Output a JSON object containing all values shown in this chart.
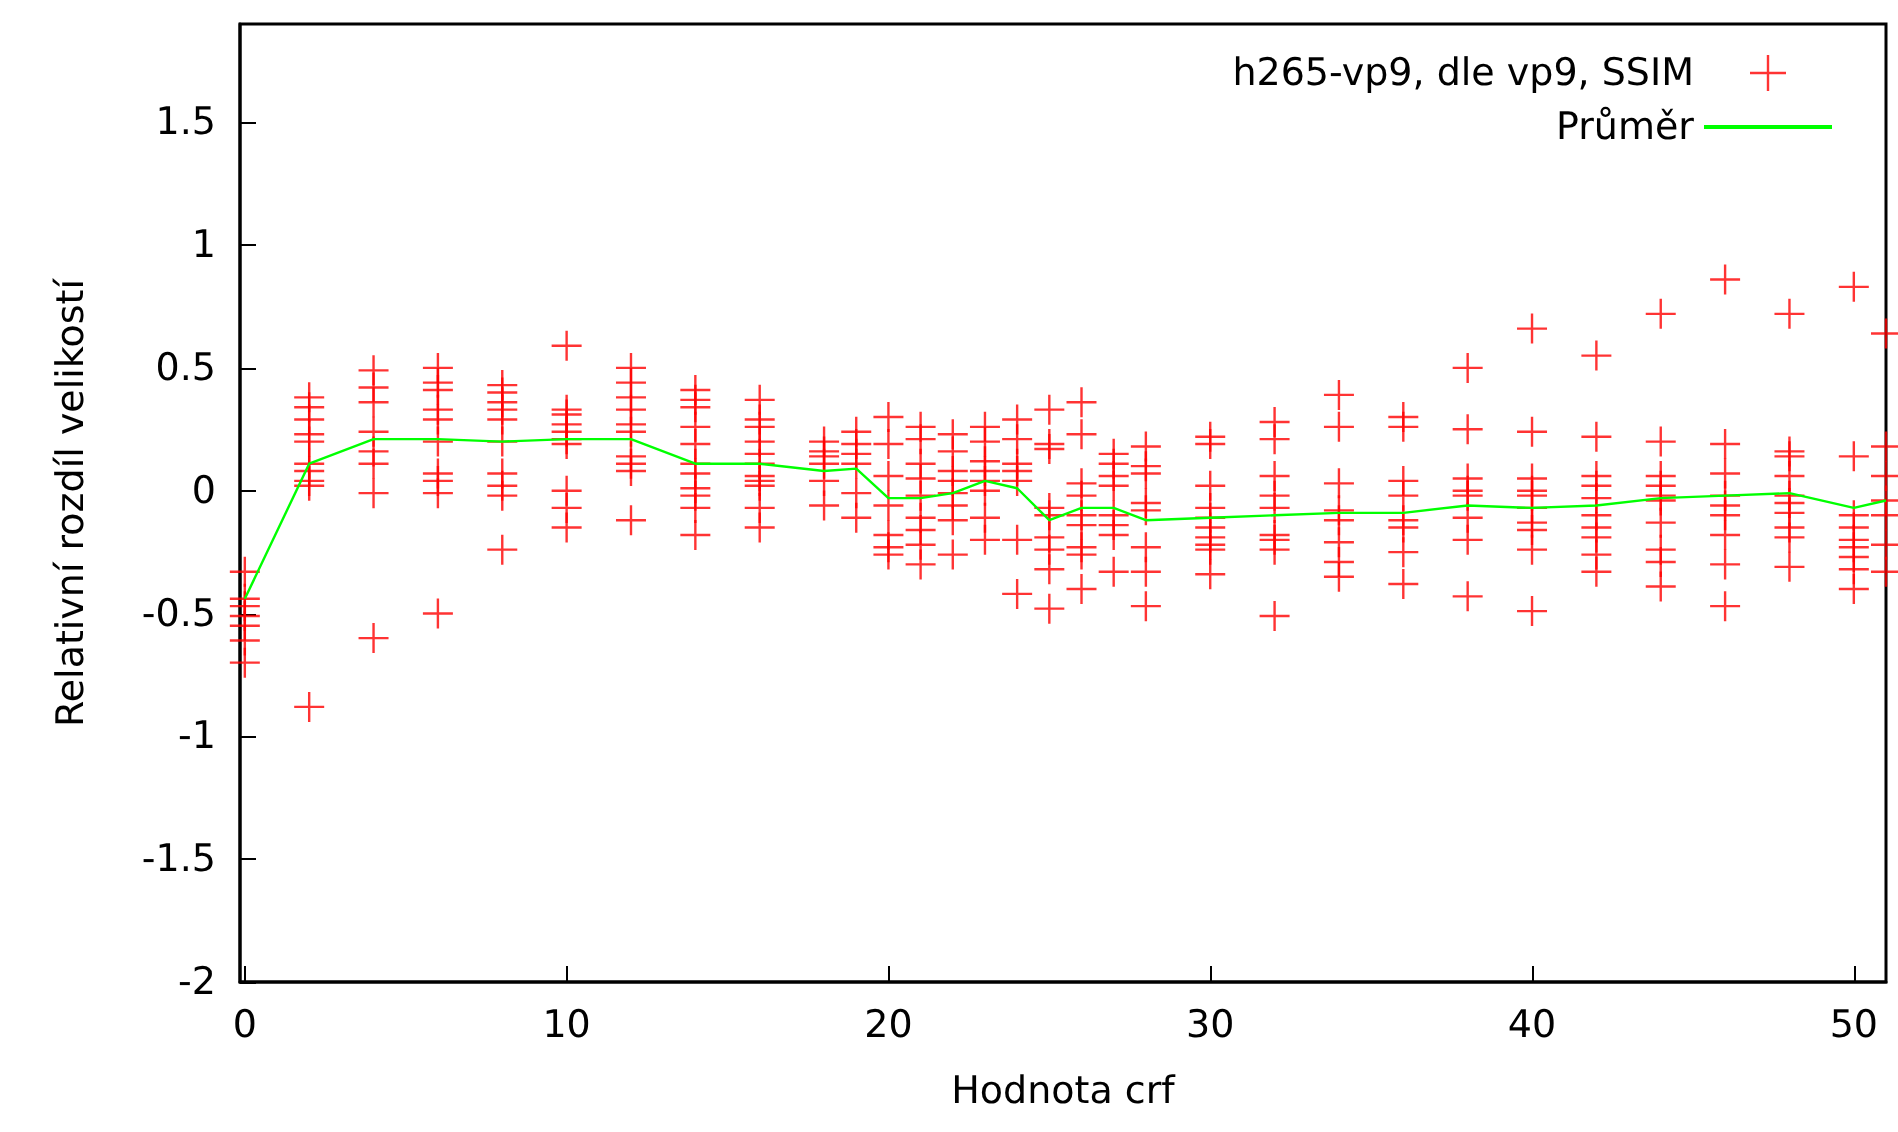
{
  "chart_data": {
    "type": "scatter",
    "xlabel": "Hodnota crf",
    "ylabel": "Relativní rozdíl velikostí",
    "xlim": [
      -0.15,
      51
    ],
    "ylim": [
      -2,
      1.9
    ],
    "xticks": [
      0,
      10,
      20,
      30,
      40,
      50
    ],
    "yticks": [
      -2,
      -1.5,
      -1,
      -0.5,
      0,
      0.5,
      1,
      1.5
    ],
    "grid": false,
    "legend": "top right",
    "series": [
      {
        "name": "h265-vp9, dle vp9, SSIM",
        "marker": "cross",
        "color": "#ff0000",
        "x": [
          0,
          0,
          0,
          0,
          0,
          0,
          0,
          2,
          2,
          2,
          2,
          2,
          2,
          2,
          2,
          2,
          2,
          4,
          4,
          4,
          4,
          4,
          4,
          4,
          4,
          6,
          6,
          6,
          6,
          6,
          6,
          6,
          6,
          6,
          6,
          8,
          8,
          8,
          8,
          8,
          8,
          8,
          8,
          8,
          8,
          10,
          10,
          10,
          10,
          10,
          10,
          10,
          10,
          10,
          10,
          12,
          12,
          12,
          12,
          12,
          12,
          12,
          12,
          12,
          12,
          14,
          14,
          14,
          14,
          14,
          14,
          14,
          14,
          14,
          14,
          14,
          16,
          16,
          16,
          16,
          16,
          16,
          16,
          16,
          16,
          16,
          16,
          18,
          18,
          18,
          18,
          18,
          18,
          19,
          19,
          19,
          19,
          19,
          19,
          20,
          20,
          20,
          20,
          20,
          20,
          20,
          21,
          21,
          21,
          21,
          21,
          21,
          21,
          21,
          21,
          22,
          22,
          22,
          22,
          22,
          22,
          22,
          22,
          23,
          23,
          23,
          23,
          23,
          23,
          23,
          23,
          24,
          24,
          24,
          24,
          24,
          24,
          24,
          25,
          25,
          25,
          25,
          25,
          25,
          25,
          25,
          25,
          26,
          26,
          26,
          26,
          26,
          26,
          26,
          26,
          26,
          27,
          27,
          27,
          27,
          27,
          27,
          27,
          27,
          28,
          28,
          28,
          28,
          28,
          28,
          28,
          28,
          30,
          30,
          30,
          30,
          30,
          30,
          30,
          30,
          30,
          30,
          32,
          32,
          32,
          32,
          32,
          32,
          32,
          32,
          32,
          34,
          34,
          34,
          34,
          34,
          34,
          34,
          34,
          36,
          36,
          36,
          36,
          36,
          36,
          36,
          36,
          38,
          38,
          38,
          38,
          38,
          38,
          38,
          38,
          40,
          40,
          40,
          40,
          40,
          40,
          40,
          40,
          40,
          40,
          42,
          42,
          42,
          42,
          42,
          42,
          42,
          42,
          42,
          42,
          44,
          44,
          44,
          44,
          44,
          44,
          44,
          44,
          44,
          44,
          46,
          46,
          46,
          46,
          46,
          46,
          46,
          46,
          46,
          48,
          48,
          48,
          48,
          48,
          48,
          48,
          48,
          48,
          48,
          50,
          50,
          50,
          50,
          50,
          50,
          50,
          50,
          50,
          51,
          51,
          51,
          51,
          51,
          51,
          51
        ],
        "values": [
          -0.33,
          -0.44,
          -0.47,
          -0.51,
          -0.55,
          -0.61,
          -0.7,
          0.38,
          0.34,
          0.29,
          0.23,
          0.2,
          0.11,
          0.08,
          0.04,
          0.02,
          -0.88,
          0.49,
          0.42,
          0.36,
          0.24,
          0.16,
          0.11,
          -0.01,
          -0.6,
          0.5,
          0.44,
          0.41,
          0.33,
          0.29,
          0.2,
          0.07,
          0.04,
          -0.01,
          -0.5,
          0.43,
          0.4,
          0.36,
          0.33,
          0.29,
          0.2,
          0.07,
          0.02,
          -0.02,
          -0.24,
          0.59,
          0.33,
          0.31,
          0.27,
          0.24,
          0.21,
          0.19,
          0,
          -0.07,
          -0.15,
          0.5,
          0.44,
          0.38,
          0.33,
          0.27,
          0.24,
          0.14,
          0.11,
          0.08,
          -0.12,
          0.41,
          0.37,
          0.34,
          0.26,
          0.19,
          0.11,
          0.07,
          0.01,
          -0.02,
          -0.07,
          -0.18,
          0.37,
          0.29,
          0.26,
          0.2,
          0.15,
          0.11,
          0.06,
          0.04,
          0.02,
          -0.07,
          -0.15,
          0.2,
          0.16,
          0.14,
          0.11,
          0.04,
          -0.06,
          0.24,
          0.19,
          0.15,
          0.11,
          -0.01,
          -0.11,
          0.3,
          0.19,
          0.06,
          -0.06,
          -0.18,
          -0.23,
          -0.26,
          0.26,
          0.21,
          0.11,
          0.05,
          -0.02,
          -0.11,
          -0.16,
          -0.22,
          -0.3,
          0.23,
          0.16,
          0.08,
          0.04,
          -0.01,
          -0.06,
          -0.12,
          -0.26,
          0.26,
          0.2,
          0.12,
          0.08,
          0.04,
          0,
          -0.11,
          -0.2,
          0.29,
          0.21,
          0.11,
          0.08,
          0.04,
          -0.2,
          -0.42,
          0.33,
          0.19,
          0.17,
          -0.07,
          -0.1,
          -0.19,
          -0.24,
          -0.32,
          -0.48,
          0.36,
          0.23,
          0.03,
          -0.02,
          -0.1,
          -0.14,
          -0.23,
          -0.26,
          -0.4,
          0.15,
          0.11,
          0.06,
          0.02,
          -0.1,
          -0.14,
          -0.18,
          -0.33,
          0.18,
          0.1,
          0.07,
          -0.05,
          -0.08,
          -0.23,
          -0.33,
          -0.47,
          0.22,
          0.19,
          0.02,
          -0.07,
          -0.11,
          -0.15,
          -0.19,
          -0.22,
          -0.24,
          -0.34,
          0.28,
          0.21,
          0.06,
          -0.02,
          -0.07,
          -0.18,
          -0.2,
          -0.24,
          -0.51,
          0.39,
          0.26,
          0.03,
          -0.08,
          -0.12,
          -0.21,
          -0.29,
          -0.35,
          0.3,
          0.26,
          0.04,
          -0.02,
          -0.12,
          -0.15,
          -0.25,
          -0.38,
          0.5,
          0.25,
          0.05,
          0,
          -0.02,
          -0.11,
          -0.2,
          -0.43,
          0.66,
          0.24,
          0.05,
          0,
          -0.02,
          -0.07,
          -0.13,
          -0.16,
          -0.24,
          -0.49,
          0.55,
          0.22,
          0.06,
          0.02,
          -0.03,
          -0.1,
          -0.15,
          -0.19,
          -0.26,
          -0.33,
          0.72,
          0.2,
          0.06,
          0.02,
          -0.02,
          -0.04,
          -0.13,
          -0.24,
          -0.29,
          -0.39,
          0.86,
          0.19,
          0.07,
          -0.02,
          -0.06,
          -0.1,
          -0.18,
          -0.3,
          -0.47,
          0.72,
          0.16,
          0.14,
          0.06,
          -0.02,
          -0.05,
          -0.09,
          -0.15,
          -0.19,
          -0.31,
          0.83,
          0.14,
          -0.1,
          -0.15,
          -0.2,
          -0.23,
          -0.27,
          -0.32,
          -0.4,
          0.64,
          0.18,
          0.06,
          -0.04,
          -0.1,
          -0.22,
          -0.33
        ]
      },
      {
        "name": "Průměr",
        "type": "line",
        "marker": "none",
        "line_style": "solid",
        "color": "#00ff00",
        "x": [
          0,
          2,
          4,
          6,
          8,
          10,
          12,
          14,
          16,
          18,
          19,
          20,
          21,
          22,
          23,
          24,
          25,
          26,
          27,
          28,
          30,
          32,
          34,
          36,
          38,
          40,
          42,
          44,
          46,
          48,
          50,
          51
        ],
        "values": [
          -0.44,
          0.11,
          0.21,
          0.21,
          0.2,
          0.21,
          0.21,
          0.11,
          0.11,
          0.08,
          0.09,
          -0.03,
          -0.03,
          -0.01,
          0.04,
          0.01,
          -0.12,
          -0.07,
          -0.07,
          -0.12,
          -0.11,
          -0.1,
          -0.09,
          -0.09,
          -0.06,
          -0.07,
          -0.06,
          -0.03,
          -0.02,
          -0.01,
          -0.07,
          -0.04
        ]
      }
    ]
  }
}
